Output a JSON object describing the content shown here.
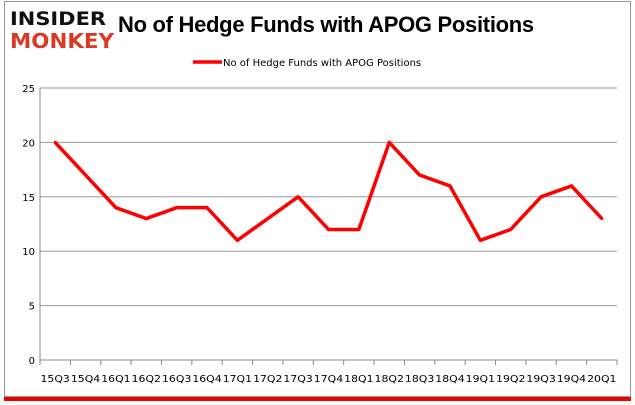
{
  "logo": {
    "line1": "INSIDER",
    "line2": "MONKEY",
    "colors": {
      "line1": "#111111",
      "line2": "#d93a26"
    }
  },
  "chart_data": {
    "type": "line",
    "title": "No of Hedge Funds with APOG Positions",
    "categories": [
      "15Q3",
      "15Q4",
      "16Q1",
      "16Q2",
      "16Q3",
      "16Q4",
      "17Q1",
      "17Q2",
      "17Q3",
      "17Q4",
      "18Q1",
      "18Q2",
      "18Q3",
      "18Q4",
      "19Q1",
      "19Q2",
      "19Q3",
      "19Q4",
      "20Q1"
    ],
    "series": [
      {
        "name": "No of Hedge Funds with APOG Positions",
        "color": "#ff0000",
        "values": [
          20,
          17,
          14,
          13,
          14,
          14,
          11,
          13,
          15,
          12,
          12,
          20,
          17,
          16,
          11,
          12,
          15,
          16,
          13
        ]
      }
    ],
    "ylim": [
      0,
      25
    ],
    "yticks": [
      0,
      5,
      10,
      15,
      20,
      25
    ],
    "grid": true,
    "legend": "top-center",
    "xlabel": "",
    "ylabel": ""
  }
}
